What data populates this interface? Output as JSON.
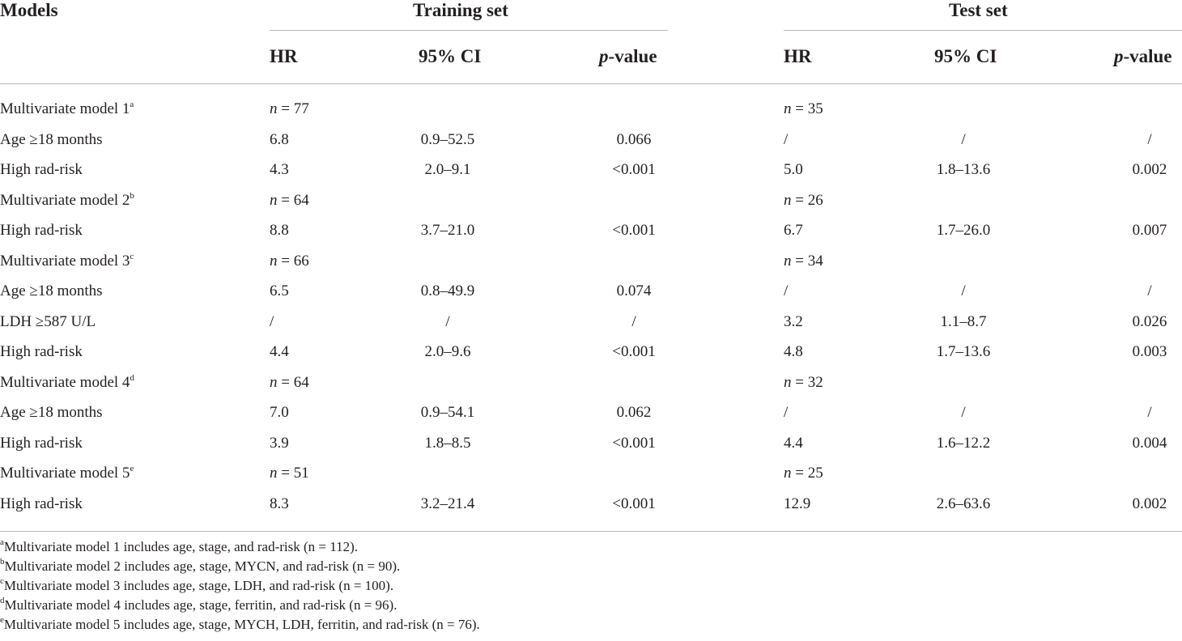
{
  "headers": {
    "models": "Models",
    "training_set": "Training set",
    "test_set": "Test set",
    "hr": "HR",
    "ci": "95% CI",
    "p_prefix": "p",
    "p_suffix": "-value"
  },
  "rows": [
    {
      "label": "Multivariate model 1",
      "sup": "a",
      "train_n": "n = 77",
      "test_n": "n = 35"
    },
    {
      "label": "Age ≥18 months",
      "train": [
        "6.8",
        "0.9–52.5",
        "0.066"
      ],
      "test": [
        "/",
        "/",
        "/"
      ]
    },
    {
      "label": "High rad-risk",
      "train": [
        "4.3",
        "2.0–9.1",
        "<0.001"
      ],
      "test": [
        "5.0",
        "1.8–13.6",
        "0.002"
      ]
    },
    {
      "label": "Multivariate model 2",
      "sup": "b",
      "train_n": "n = 64",
      "test_n": "n = 26"
    },
    {
      "label": "High rad-risk",
      "train": [
        "8.8",
        "3.7–21.0",
        "<0.001"
      ],
      "test": [
        "6.7",
        "1.7–26.0",
        "0.007"
      ]
    },
    {
      "label": "Multivariate model 3",
      "sup": "c",
      "train_n": "n = 66",
      "test_n": "n = 34"
    },
    {
      "label": "Age ≥18 months",
      "train": [
        "6.5",
        "0.8–49.9",
        "0.074"
      ],
      "test": [
        "/",
        "/",
        "/"
      ]
    },
    {
      "label": "LDH ≥587 U/L",
      "train": [
        "/",
        "/",
        "/"
      ],
      "test": [
        "3.2",
        "1.1–8.7",
        "0.026"
      ]
    },
    {
      "label": "High rad-risk",
      "train": [
        "4.4",
        "2.0–9.6",
        "<0.001"
      ],
      "test": [
        "4.8",
        "1.7–13.6",
        "0.003"
      ]
    },
    {
      "label": "Multivariate model 4",
      "sup": "d",
      "train_n": "n = 64",
      "test_n": "n = 32"
    },
    {
      "label": "Age ≥18 months",
      "train": [
        "7.0",
        "0.9–54.1",
        "0.062"
      ],
      "test": [
        "/",
        "/",
        "/"
      ]
    },
    {
      "label": "High rad-risk",
      "train": [
        "3.9",
        "1.8–8.5",
        "<0.001"
      ],
      "test": [
        "4.4",
        "1.6–12.2",
        "0.004"
      ]
    },
    {
      "label": "Multivariate model 5",
      "sup": "e",
      "train_n": "n = 51",
      "test_n": "n = 25"
    },
    {
      "label": "High rad-risk",
      "train": [
        "8.3",
        "3.2–21.4",
        "<0.001"
      ],
      "test": [
        "12.9",
        "2.6–63.6",
        "0.002"
      ]
    }
  ],
  "footnotes": [
    {
      "sup": "a",
      "text": "Multivariate model 1 includes age, stage, and rad-risk (n = 112)."
    },
    {
      "sup": "b",
      "text": "Multivariate model 2 includes age, stage, MYCN, and rad-risk (n = 90)."
    },
    {
      "sup": "c",
      "text": "Multivariate model 3 includes age, stage, LDH, and rad-risk (n = 100)."
    },
    {
      "sup": "d",
      "text": "Multivariate model 4 includes age, stage, ferritin, and rad-risk (n = 96)."
    },
    {
      "sup": "e",
      "text": "Multivariate model 5 includes age, stage, MYCH, LDH, ferritin, and rad-risk (n = 76)."
    }
  ]
}
